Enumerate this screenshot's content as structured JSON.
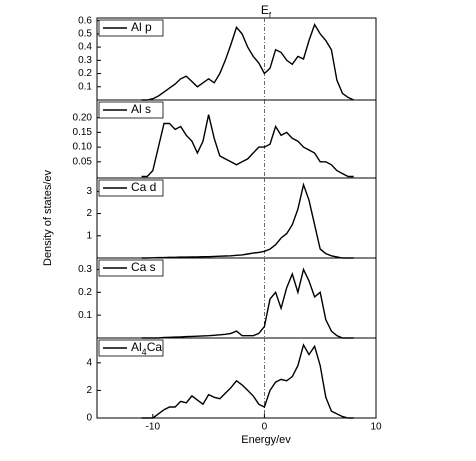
{
  "figure": {
    "title": "Ef",
    "xlabel": "Energy/ev",
    "ylabel": "Density of states/ev",
    "vline": 0
  },
  "chart_data": [
    {
      "type": "line",
      "xlim": [
        -15,
        10
      ],
      "ylim": [
        0,
        0.62
      ],
      "yticks": [
        0.1,
        0.2,
        0.3,
        0.4,
        0.5,
        0.6
      ],
      "x": [
        -11,
        -10.5,
        -10,
        -9.5,
        -9,
        -8.5,
        -8,
        -7.5,
        -7,
        -6.5,
        -6,
        -5.5,
        -5,
        -4.5,
        -4,
        -3.5,
        -3,
        -2.5,
        -2,
        -1.5,
        -1,
        -0.5,
        0,
        0.5,
        1,
        1.5,
        2,
        2.5,
        3,
        3.5,
        4,
        4.5,
        5,
        5.5,
        6,
        6.5,
        7,
        7.5,
        8
      ],
      "series": [
        {
          "name": "Al p",
          "color": "#000000",
          "values": [
            0,
            0,
            0.01,
            0.03,
            0.06,
            0.09,
            0.12,
            0.16,
            0.18,
            0.14,
            0.1,
            0.13,
            0.16,
            0.13,
            0.2,
            0.3,
            0.42,
            0.55,
            0.5,
            0.4,
            0.33,
            0.28,
            0.2,
            0.24,
            0.38,
            0.36,
            0.3,
            0.27,
            0.33,
            0.31,
            0.45,
            0.57,
            0.5,
            0.45,
            0.38,
            0.15,
            0.05,
            0.02,
            0
          ]
        }
      ]
    },
    {
      "type": "line",
      "xlim": [
        -15,
        10
      ],
      "ylim": [
        -0.005,
        0.26
      ],
      "yticks": [
        0.05,
        {
          "value": 0.1,
          "label": "0.10"
        },
        0.15,
        {
          "value": 0.2,
          "label": "0.20"
        }
      ],
      "x": [
        -11,
        -10.5,
        -10,
        -9.5,
        -9,
        -8.5,
        -8,
        -7.5,
        -7,
        -6.5,
        -6,
        -5.5,
        -5,
        -4.5,
        -4,
        -3.5,
        -3,
        -2.5,
        -2,
        -1.5,
        -1,
        -0.5,
        0,
        0.5,
        1,
        1.5,
        2,
        2.5,
        3,
        3.5,
        4,
        4.5,
        5,
        5.5,
        6,
        6.5,
        7,
        7.5,
        8
      ],
      "series": [
        {
          "name": "Al s",
          "color": "#000000",
          "values": [
            0,
            0,
            0.02,
            0.1,
            0.18,
            0.18,
            0.16,
            0.17,
            0.14,
            0.12,
            0.08,
            0.12,
            0.21,
            0.13,
            0.07,
            0.06,
            0.05,
            0.04,
            0.05,
            0.06,
            0.08,
            0.1,
            0.1,
            0.11,
            0.17,
            0.14,
            0.15,
            0.13,
            0.12,
            0.1,
            0.09,
            0.08,
            0.05,
            0.05,
            0.04,
            0.02,
            0.01,
            0,
            0
          ]
        }
      ]
    },
    {
      "type": "line",
      "xlim": [
        -15,
        10
      ],
      "ylim": [
        0,
        3.6
      ],
      "yticks": [
        1,
        2,
        3
      ],
      "x": [
        -11,
        -10.5,
        -10,
        -9.5,
        -9,
        -8.5,
        -8,
        -7.5,
        -7,
        -6.5,
        -6,
        -5.5,
        -5,
        -4.5,
        -4,
        -3.5,
        -3,
        -2.5,
        -2,
        -1.5,
        -1,
        -0.5,
        0,
        0.5,
        1,
        1.5,
        2,
        2.5,
        3,
        3.5,
        4,
        4.5,
        5,
        5.5,
        6,
        6.5,
        7,
        7.5,
        8
      ],
      "series": [
        {
          "name": "Ca d",
          "color": "#000000",
          "values": [
            0,
            0,
            0.01,
            0.02,
            0.02,
            0.03,
            0.03,
            0.04,
            0.04,
            0.05,
            0.05,
            0.06,
            0.06,
            0.07,
            0.08,
            0.09,
            0.1,
            0.12,
            0.14,
            0.18,
            0.22,
            0.25,
            0.3,
            0.4,
            0.6,
            0.9,
            1.1,
            1.5,
            2.2,
            3.3,
            2.6,
            1.5,
            0.4,
            0.2,
            0.1,
            0.05,
            0,
            0,
            0
          ]
        }
      ]
    },
    {
      "type": "line",
      "xlim": [
        -15,
        10
      ],
      "ylim": [
        0,
        0.35
      ],
      "yticks": [
        0.1,
        0.2,
        0.3
      ],
      "x": [
        -11,
        -10.5,
        -10,
        -9.5,
        -9,
        -8.5,
        -8,
        -7.5,
        -7,
        -6.5,
        -6,
        -5.5,
        -5,
        -4.5,
        -4,
        -3.5,
        -3,
        -2.5,
        -2,
        -1.5,
        -1,
        -0.5,
        0,
        0.5,
        1,
        1.5,
        2,
        2.5,
        3,
        3.5,
        4,
        4.5,
        5,
        5.5,
        6,
        6.5,
        7,
        7.5,
        8
      ],
      "series": [
        {
          "name": "Ca s",
          "color": "#000000",
          "values": [
            0,
            0,
            0,
            0,
            0.002,
            0.003,
            0.004,
            0.005,
            0.006,
            0.007,
            0.008,
            0.009,
            0.01,
            0.012,
            0.014,
            0.016,
            0.02,
            0.03,
            0.01,
            0.01,
            0.01,
            0.02,
            0.05,
            0.17,
            0.2,
            0.13,
            0.22,
            0.28,
            0.2,
            0.3,
            0.25,
            0.18,
            0.2,
            0.08,
            0.03,
            0.01,
            0,
            0,
            0
          ]
        }
      ]
    },
    {
      "type": "line",
      "xlim": [
        -15,
        10
      ],
      "ylim": [
        0,
        5.8
      ],
      "yticks": [
        0,
        2,
        4
      ],
      "xticks": [
        -10,
        0,
        10
      ],
      "x": [
        -11,
        -10.5,
        -10,
        -9.5,
        -9,
        -8.5,
        -8,
        -7.5,
        -7,
        -6.5,
        -6,
        -5.5,
        -5,
        -4.5,
        -4,
        -3.5,
        -3,
        -2.5,
        -2,
        -1.5,
        -1,
        -0.5,
        0,
        0.5,
        1,
        1.5,
        2,
        2.5,
        3,
        3.5,
        4,
        4.5,
        5,
        5.5,
        6,
        6.5,
        7,
        7.5,
        8
      ],
      "series": [
        {
          "name": "Al4Ca",
          "color": "#000000",
          "values": [
            0,
            0,
            0,
            0.3,
            0.6,
            0.8,
            0.8,
            1.2,
            1.1,
            1.6,
            1.3,
            1.0,
            1.7,
            1.5,
            1.4,
            1.8,
            2.2,
            2.7,
            2.4,
            2.0,
            1.6,
            1.0,
            0.8,
            2.0,
            2.6,
            2.8,
            2.7,
            3.0,
            3.8,
            5.3,
            4.6,
            5.2,
            3.8,
            1.5,
            0.5,
            0.3,
            0.1,
            0,
            0
          ]
        }
      ]
    }
  ]
}
